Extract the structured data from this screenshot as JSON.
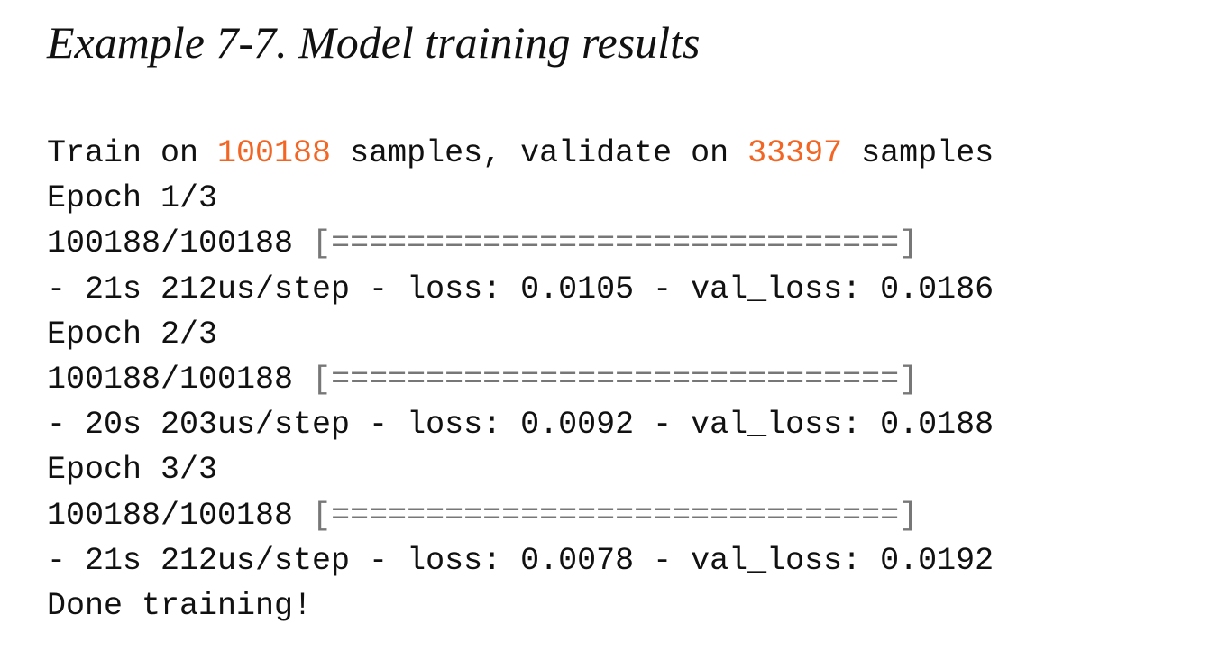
{
  "title": "Example 7-7. Model training results",
  "code": {
    "lines": [
      [
        "Train on ",
        "100188",
        " samples, validate on ",
        "33397",
        " samples"
      ],
      [
        "Epoch 1/3"
      ],
      [
        "100188/100188 ",
        "[==============================]"
      ],
      [
        "- 21s 212us/step - loss: 0.0105 - val_loss: 0.0186"
      ],
      [
        "Epoch 2/3"
      ],
      [
        "100188/100188 ",
        "[==============================]"
      ],
      [
        "- 20s 203us/step - loss: 0.0092 - val_loss: 0.0188"
      ],
      [
        "Epoch 3/3"
      ],
      [
        "100188/100188 ",
        "[==============================]"
      ],
      [
        "- 21s 212us/step - loss: 0.0078 - val_loss: 0.0192"
      ],
      [
        "Done training!"
      ]
    ]
  }
}
